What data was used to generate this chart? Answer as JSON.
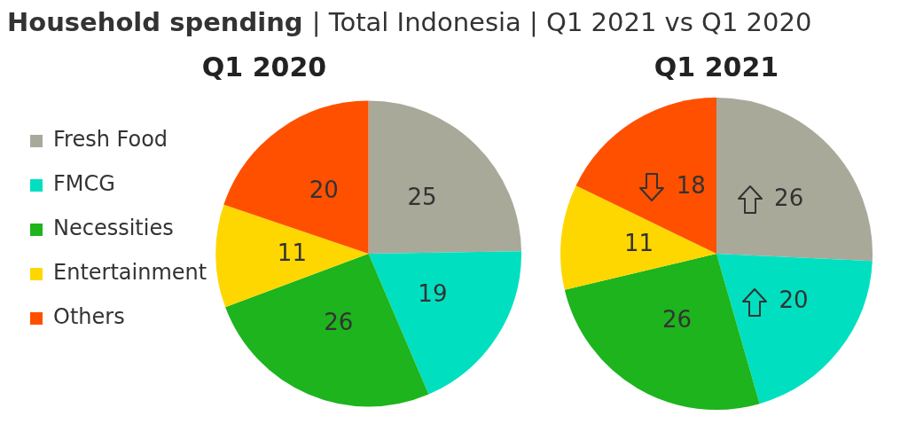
{
  "chart_data": [
    {
      "type": "pie",
      "title": "Household spending | Total Indonesia | Q1 2021 vs Q1 2020",
      "subtitle": "Q1 2020",
      "categories": [
        "Fresh Food",
        "FMCG",
        "Necessities",
        "Entertainment",
        "Others"
      ],
      "values": [
        25,
        19,
        26,
        11,
        20
      ],
      "colors": [
        "#a9a99a",
        "#00e0c0",
        "#1db41d",
        "#ffd700",
        "#ff5000"
      ],
      "data_labels": true,
      "legend": "left"
    },
    {
      "type": "pie",
      "title": "Q1 2021",
      "categories": [
        null,
        null,
        null,
        null,
        null
      ],
      "values": [
        26,
        20,
        26,
        11,
        18
      ],
      "colors": [
        "#a9a99a",
        "#00e0c0",
        "#1db41d",
        "#ffd700",
        "#ff5000"
      ],
      "data_labels": true
    }
  ]
}
